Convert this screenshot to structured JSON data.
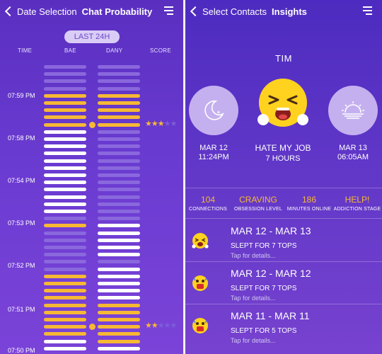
{
  "left": {
    "nav": {
      "back_label": "Date Selection",
      "title": "Chat Probability"
    },
    "pill_label": "LAST 24H",
    "columns": {
      "time": "TIME",
      "bae": "BAE",
      "dany": "DANY",
      "score": "SCORE"
    },
    "time_labels": [
      "07:59 PM",
      "07:58 PM",
      "07:54 PM",
      "07:53 PM",
      "07:52 PM",
      "07:51 PM",
      "07:50 PM"
    ],
    "bae_bars": [
      "dim",
      "dim",
      "dim",
      "dim",
      "yellow",
      "yellow",
      "yellow",
      "yellow",
      "yellow",
      "white",
      "white",
      "white",
      "white",
      "white",
      "white",
      "white",
      "white",
      "white",
      "white",
      "white",
      "white",
      "dim",
      "yellow",
      "dim",
      "dim",
      "dim",
      "dim",
      "dim",
      "dim",
      "yellow",
      "yellow",
      "yellow",
      "yellow",
      "yellow",
      "yellow",
      "yellow",
      "yellow",
      "yellow",
      "white",
      "white"
    ],
    "dany_bars": [
      "dim",
      "dim",
      "dim",
      "dim",
      "yellow",
      "yellow",
      "yellow",
      "yellow",
      "yellow",
      "dim",
      "dim",
      "dim",
      "dim",
      "dim",
      "dim",
      "dim",
      "dim",
      "dim",
      "dim",
      "dim",
      "dim",
      "dim",
      "white",
      "white",
      "white",
      "white",
      "white",
      "dim",
      "white",
      "white",
      "white",
      "white",
      "white",
      "yellow",
      "yellow",
      "yellow",
      "yellow",
      "yellow",
      "yellow",
      "white"
    ],
    "scores": [
      {
        "bar_index": 8,
        "filled": 3,
        "total": 5
      },
      {
        "bar_index": 36,
        "filled": 2,
        "total": 5
      }
    ],
    "colors": {
      "yellow": "#f7b834",
      "white": "#ffffff",
      "dim": "#8a68dd"
    }
  },
  "right": {
    "nav": {
      "back_label": "Select Contacts",
      "title": "Insights"
    },
    "name": "TIM",
    "sleep": {
      "date": "MAR 12",
      "time": "11:24PM",
      "icon": "moon-icon"
    },
    "mood": {
      "label": "HATE MY JOB",
      "hours": "7 HOURS",
      "icon": "crying-face-icon"
    },
    "wake": {
      "date": "MAR 13",
      "time": "06:05AM",
      "icon": "sunrise-icon"
    },
    "metrics": [
      {
        "value": "104",
        "label": "CONNECTIONS"
      },
      {
        "value": "CRAVING",
        "label": "OBSESSION LEVEL"
      },
      {
        "value": "186",
        "label": "MINUTES ONLINE"
      },
      {
        "value": "HELP!",
        "label": "ADDICTION STAGE"
      }
    ],
    "history": [
      {
        "range": "MAR 12 - MAR 13",
        "summary": "SLEPT FOR 7 TOPS",
        "hint": "Tap for details..."
      },
      {
        "range": "MAR 12 - MAR 12",
        "summary": "SLEPT FOR 7 TOPS",
        "hint": "Tap for details..."
      },
      {
        "range": "MAR 11 - MAR 11",
        "summary": "SLEPT FOR 5 TOPS",
        "hint": "Tap for details..."
      }
    ]
  }
}
